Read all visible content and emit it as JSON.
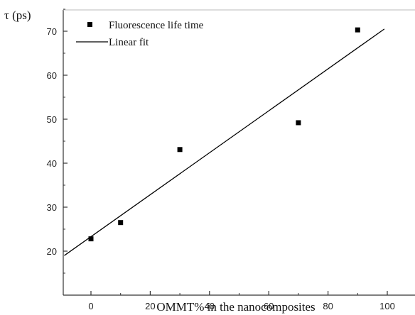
{
  "chart_data": {
    "type": "scatter",
    "title": "",
    "xlabel": "OMMT% in the nanocomposites",
    "ylabel": "τ (ps)",
    "xlim": [
      -10,
      110
    ],
    "ylim": [
      15,
      75
    ],
    "x_ticks": [
      0,
      20,
      40,
      60,
      80,
      100
    ],
    "y_ticks": [
      20,
      30,
      40,
      50,
      60,
      70
    ],
    "grid": false,
    "legend_position": "top-left",
    "series": [
      {
        "name": "Fluorescence life time",
        "type": "scatter",
        "marker": "square",
        "color": "#000000",
        "x": [
          0,
          10,
          30,
          70,
          90
        ],
        "y": [
          22.8,
          26.5,
          43.1,
          49.2,
          70.3
        ]
      },
      {
        "name": "Linear fit",
        "type": "line",
        "color": "#000000",
        "x": [
          -9,
          99
        ],
        "y": [
          19.0,
          70.5
        ]
      }
    ]
  }
}
